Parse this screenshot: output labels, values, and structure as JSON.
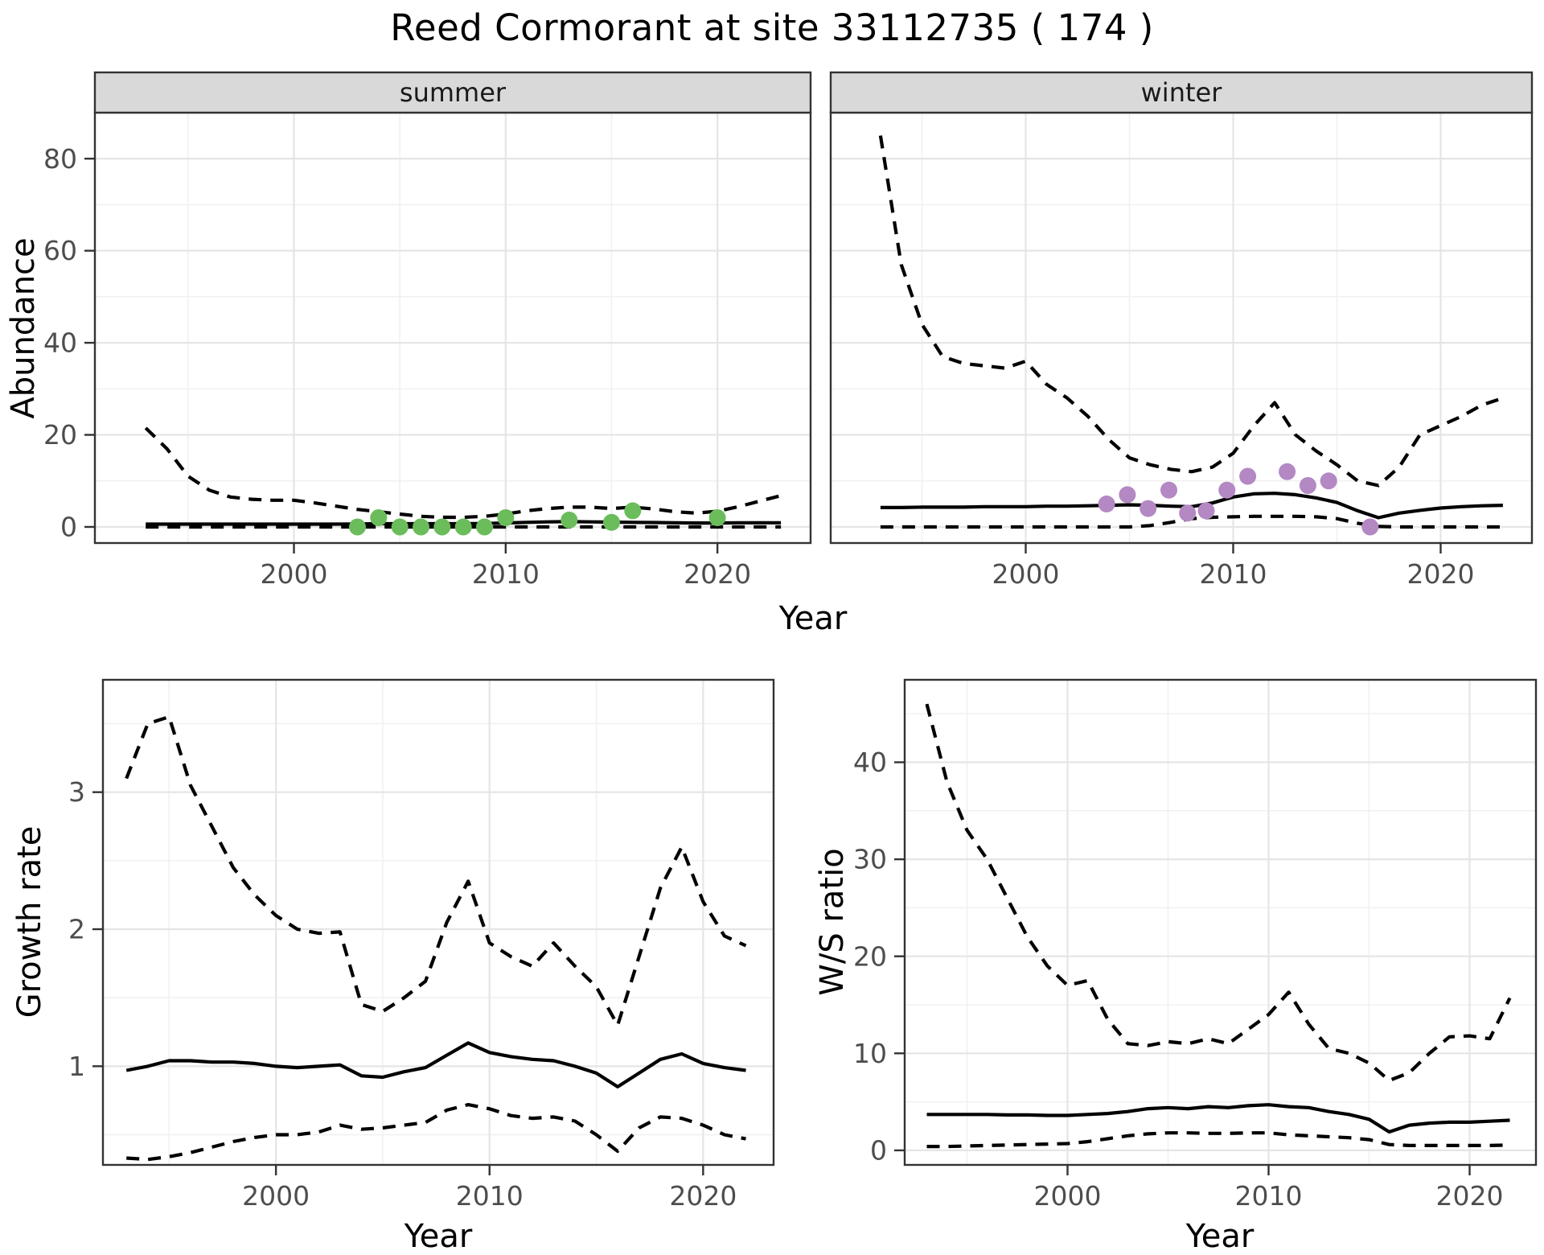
{
  "title": "Reed Cormorant at site 33112735 ( 174 )",
  "styles": {
    "strip_bg": "#d9d9d9",
    "strip_text": "#1a1a1a",
    "grid_major": "#e5e5e5",
    "grid_minor": "#f0f0f0",
    "panel_border": "#333333",
    "tick_text": "#4d4d4d",
    "line_color": "#000000",
    "summer_point_color": "#6abd5a",
    "winter_point_color": "#b388c3"
  },
  "chart_data": [
    {
      "id": "abundance-summer",
      "type": "line",
      "facet": "summer",
      "xlabel": "Year",
      "ylabel": "Abundance",
      "xlim": [
        1990.6,
        2024.4
      ],
      "ylim": [
        -3.5,
        90
      ],
      "x_ticks": [
        2000,
        2010,
        2020
      ],
      "x_minor": [
        1995,
        2005,
        2015
      ],
      "y_ticks": [
        0,
        20,
        40,
        60,
        80
      ],
      "y_minor": [
        10,
        30,
        50,
        70
      ],
      "years": [
        1993,
        1994,
        1995,
        1996,
        1997,
        1998,
        1999,
        2000,
        2001,
        2002,
        2003,
        2004,
        2005,
        2006,
        2007,
        2008,
        2009,
        2010,
        2011,
        2012,
        2013,
        2014,
        2015,
        2016,
        2017,
        2018,
        2019,
        2020,
        2021,
        2022,
        2023
      ],
      "series": [
        {
          "name": "upper-ci",
          "style": "dashed",
          "values": [
            21.5,
            17,
            11,
            8,
            6.5,
            6,
            5.8,
            5.8,
            5.2,
            4.5,
            3.8,
            3.3,
            2.8,
            2.3,
            2.1,
            2.1,
            2.3,
            2.8,
            3.5,
            4,
            4.3,
            4.3,
            4,
            4.3,
            3.9,
            3.3,
            3,
            3.4,
            4.4,
            5.6,
            6.8
          ]
        },
        {
          "name": "lower-ci",
          "style": "dashed",
          "values": [
            0,
            0,
            0,
            0,
            0,
            0,
            0,
            0,
            0,
            0,
            0,
            0,
            0,
            0,
            0,
            0,
            0,
            0,
            0,
            0,
            0,
            0,
            0,
            0,
            0,
            0,
            0,
            0,
            0,
            0,
            0
          ]
        },
        {
          "name": "median",
          "style": "solid",
          "values": [
            0.6,
            0.6,
            0.6,
            0.6,
            0.6,
            0.6,
            0.6,
            0.6,
            0.6,
            0.6,
            0.65,
            0.7,
            0.7,
            0.7,
            0.7,
            0.7,
            0.75,
            0.85,
            1,
            1.1,
            1.15,
            1.1,
            1.05,
            1,
            0.95,
            0.9,
            0.85,
            0.85,
            0.9,
            0.9,
            0.9
          ]
        }
      ],
      "points": {
        "name": "summer-count-point",
        "color": "#6abd5a",
        "x": [
          2003,
          2004,
          2005,
          2006,
          2007,
          2008,
          2009,
          2010,
          2013,
          2015,
          2016,
          2020
        ],
        "y": [
          0,
          2,
          0,
          0,
          0,
          0,
          0,
          2,
          1.5,
          1,
          3.5,
          2
        ]
      }
    },
    {
      "id": "abundance-winter",
      "type": "line",
      "facet": "winter",
      "xlabel": "Year",
      "ylabel": "Abundance",
      "xlim": [
        1990.6,
        2024.4
      ],
      "ylim": [
        -3.5,
        90
      ],
      "x_ticks": [
        2000,
        2010,
        2020
      ],
      "x_minor": [
        1995,
        2005,
        2015
      ],
      "y_ticks": [
        0,
        20,
        40,
        60,
        80
      ],
      "y_minor": [
        10,
        30,
        50,
        70
      ],
      "years": [
        1993,
        1994,
        1995,
        1996,
        1997,
        1998,
        1999,
        2000,
        2001,
        2002,
        2003,
        2004,
        2005,
        2006,
        2007,
        2008,
        2009,
        2010,
        2011,
        2012,
        2013,
        2014,
        2015,
        2016,
        2017,
        2018,
        2019,
        2020,
        2021,
        2022,
        2023
      ],
      "series": [
        {
          "name": "upper-ci",
          "style": "dashed",
          "values": [
            85,
            57,
            44,
            37,
            35.5,
            35,
            34.5,
            36,
            31,
            28,
            24,
            19,
            15,
            13.5,
            12.5,
            12,
            13,
            16,
            22,
            27,
            20,
            16.5,
            13.5,
            10,
            9,
            13,
            20,
            22,
            24,
            26.5,
            28
          ]
        },
        {
          "name": "lower-ci",
          "style": "dashed",
          "values": [
            0,
            0,
            0,
            0,
            0,
            0,
            0,
            0,
            0,
            0,
            0,
            0,
            0,
            0.3,
            1,
            1.8,
            2.1,
            2.2,
            2.3,
            2.3,
            2.3,
            2.2,
            1.8,
            0.8,
            0.1,
            0,
            0,
            0,
            0,
            0,
            0
          ]
        },
        {
          "name": "median",
          "style": "solid",
          "values": [
            4.2,
            4.2,
            4.3,
            4.3,
            4.3,
            4.4,
            4.4,
            4.4,
            4.5,
            4.5,
            4.6,
            4.7,
            4.8,
            4.7,
            4.5,
            4.4,
            5.2,
            6.5,
            7.2,
            7.3,
            7,
            6.3,
            5.3,
            3.5,
            2,
            3,
            3.6,
            4.1,
            4.4,
            4.6,
            4.7
          ]
        }
      ],
      "points": {
        "name": "winter-count-point",
        "color": "#b388c3",
        "x": [
          2003.9,
          2004.9,
          2005.9,
          2006.9,
          2007.8,
          2008.7,
          2009.7,
          2010.7,
          2012.6,
          2013.6,
          2014.6,
          2016.6
        ],
        "y": [
          5,
          7,
          4,
          8,
          3,
          3.5,
          8,
          11,
          12,
          9,
          10,
          0
        ]
      }
    },
    {
      "id": "growth-rate",
      "type": "line",
      "facet": null,
      "xlabel": "Year",
      "ylabel": "Growth rate",
      "xlim": [
        1991.9,
        2023.3
      ],
      "ylim": [
        0.28,
        3.82
      ],
      "x_ticks": [
        2000,
        2010,
        2020
      ],
      "x_minor": [
        1995,
        2005,
        2015
      ],
      "y_ticks": [
        1,
        2,
        3
      ],
      "y_minor": [
        0.5,
        1.5,
        2.5,
        3.5
      ],
      "years": [
        1993,
        1994,
        1995,
        1996,
        1997,
        1998,
        1999,
        2000,
        2001,
        2002,
        2003,
        2004,
        2005,
        2006,
        2007,
        2008,
        2009,
        2010,
        2011,
        2012,
        2013,
        2014,
        2015,
        2016,
        2017,
        2018,
        2019,
        2020,
        2021,
        2022
      ],
      "series": [
        {
          "name": "upper-ci",
          "style": "dashed",
          "values": [
            3.1,
            3.5,
            3.55,
            3.05,
            2.75,
            2.45,
            2.25,
            2.1,
            2,
            1.97,
            1.98,
            1.45,
            1.4,
            1.5,
            1.62,
            2.05,
            2.35,
            1.9,
            1.8,
            1.73,
            1.9,
            1.73,
            1.58,
            1.3,
            1.8,
            2.3,
            2.6,
            2.2,
            1.95,
            1.88
          ]
        },
        {
          "name": "lower-ci",
          "style": "dashed",
          "values": [
            0.33,
            0.32,
            0.34,
            0.37,
            0.41,
            0.45,
            0.48,
            0.5,
            0.5,
            0.52,
            0.57,
            0.54,
            0.55,
            0.57,
            0.59,
            0.68,
            0.72,
            0.69,
            0.64,
            0.62,
            0.63,
            0.6,
            0.5,
            0.38,
            0.55,
            0.63,
            0.62,
            0.57,
            0.5,
            0.47
          ]
        },
        {
          "name": "median",
          "style": "solid",
          "values": [
            0.97,
            1,
            1.04,
            1.04,
            1.03,
            1.03,
            1.02,
            1,
            0.99,
            1,
            1.01,
            0.93,
            0.92,
            0.96,
            0.99,
            1.08,
            1.17,
            1.1,
            1.07,
            1.05,
            1.04,
            1,
            0.95,
            0.85,
            0.95,
            1.05,
            1.09,
            1.02,
            0.99,
            0.97
          ]
        }
      ],
      "points": null
    },
    {
      "id": "ws-ratio",
      "type": "line",
      "facet": null,
      "xlabel": "Year",
      "ylabel": "W/S ratio",
      "xlim": [
        1991.9,
        2023.3
      ],
      "ylim": [
        -1.5,
        48.5
      ],
      "x_ticks": [
        2000,
        2010,
        2020
      ],
      "x_minor": [
        1995,
        2005,
        2015
      ],
      "y_ticks": [
        0,
        10,
        20,
        30,
        40
      ],
      "y_minor": [
        5,
        15,
        25,
        35,
        45
      ],
      "years": [
        1993,
        1994,
        1995,
        1996,
        1997,
        1998,
        1999,
        2000,
        2001,
        2002,
        2003,
        2004,
        2005,
        2006,
        2007,
        2008,
        2009,
        2010,
        2011,
        2012,
        2013,
        2014,
        2015,
        2016,
        2017,
        2018,
        2019,
        2020,
        2021,
        2022
      ],
      "series": [
        {
          "name": "upper-ci",
          "style": "dashed",
          "values": [
            46,
            38,
            33,
            30,
            26,
            22,
            19,
            17,
            17.5,
            13.5,
            11,
            10.8,
            11.2,
            11,
            11.5,
            11,
            12.5,
            14,
            16.3,
            13,
            10.5,
            10,
            9,
            7.2,
            8,
            10,
            11.7,
            11.8,
            11.5,
            15.7
          ]
        },
        {
          "name": "lower-ci",
          "style": "dashed",
          "values": [
            0.4,
            0.4,
            0.45,
            0.5,
            0.55,
            0.6,
            0.65,
            0.7,
            0.9,
            1.2,
            1.5,
            1.7,
            1.8,
            1.8,
            1.75,
            1.75,
            1.8,
            1.8,
            1.6,
            1.5,
            1.4,
            1.3,
            1.1,
            0.6,
            0.5,
            0.5,
            0.5,
            0.5,
            0.5,
            0.55
          ]
        },
        {
          "name": "median",
          "style": "solid",
          "values": [
            3.7,
            3.7,
            3.7,
            3.7,
            3.65,
            3.65,
            3.6,
            3.6,
            3.7,
            3.8,
            4,
            4.3,
            4.4,
            4.3,
            4.5,
            4.4,
            4.6,
            4.7,
            4.5,
            4.4,
            4,
            3.7,
            3.2,
            1.9,
            2.6,
            2.8,
            2.9,
            2.9,
            3,
            3.1
          ]
        }
      ],
      "points": null
    }
  ]
}
